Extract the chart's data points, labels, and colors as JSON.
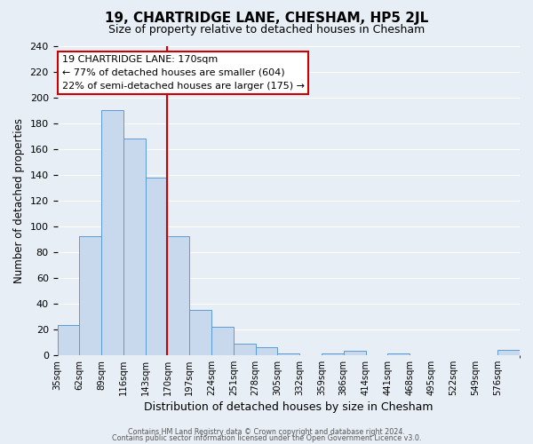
{
  "title": "19, CHARTRIDGE LANE, CHESHAM, HP5 2JL",
  "subtitle": "Size of property relative to detached houses in Chesham",
  "bar_labels": [
    "35sqm",
    "62sqm",
    "89sqm",
    "116sqm",
    "143sqm",
    "170sqm",
    "197sqm",
    "224sqm",
    "251sqm",
    "278sqm",
    "305sqm",
    "332sqm",
    "359sqm",
    "386sqm",
    "414sqm",
    "441sqm",
    "468sqm",
    "495sqm",
    "522sqm",
    "549sqm",
    "576sqm"
  ],
  "bar_values": [
    23,
    92,
    190,
    168,
    138,
    92,
    35,
    22,
    9,
    6,
    1,
    0,
    1,
    3,
    0,
    1,
    0,
    0,
    0,
    0,
    4
  ],
  "bar_color": "#c8d9ee",
  "bar_edge_color": "#5b9bd5",
  "vline_index": 5,
  "vline_color": "#cc0000",
  "ylabel": "Number of detached properties",
  "xlabel": "Distribution of detached houses by size in Chesham",
  "ylim": [
    0,
    240
  ],
  "yticks": [
    0,
    20,
    40,
    60,
    80,
    100,
    120,
    140,
    160,
    180,
    200,
    220,
    240
  ],
  "annotation_title": "19 CHARTRIDGE LANE: 170sqm",
  "annotation_line1": "← 77% of detached houses are smaller (604)",
  "annotation_line2": "22% of semi-detached houses are larger (175) →",
  "annotation_box_facecolor": "#ffffff",
  "annotation_box_edgecolor": "#cc0000",
  "footer_line1": "Contains HM Land Registry data © Crown copyright and database right 2024.",
  "footer_line2": "Contains public sector information licensed under the Open Government Licence v3.0.",
  "bg_color": "#e8eef5",
  "plot_bg_color": "#e8eef5",
  "grid_color": "#ffffff",
  "figsize": [
    6.0,
    5.0
  ],
  "dpi": 100
}
